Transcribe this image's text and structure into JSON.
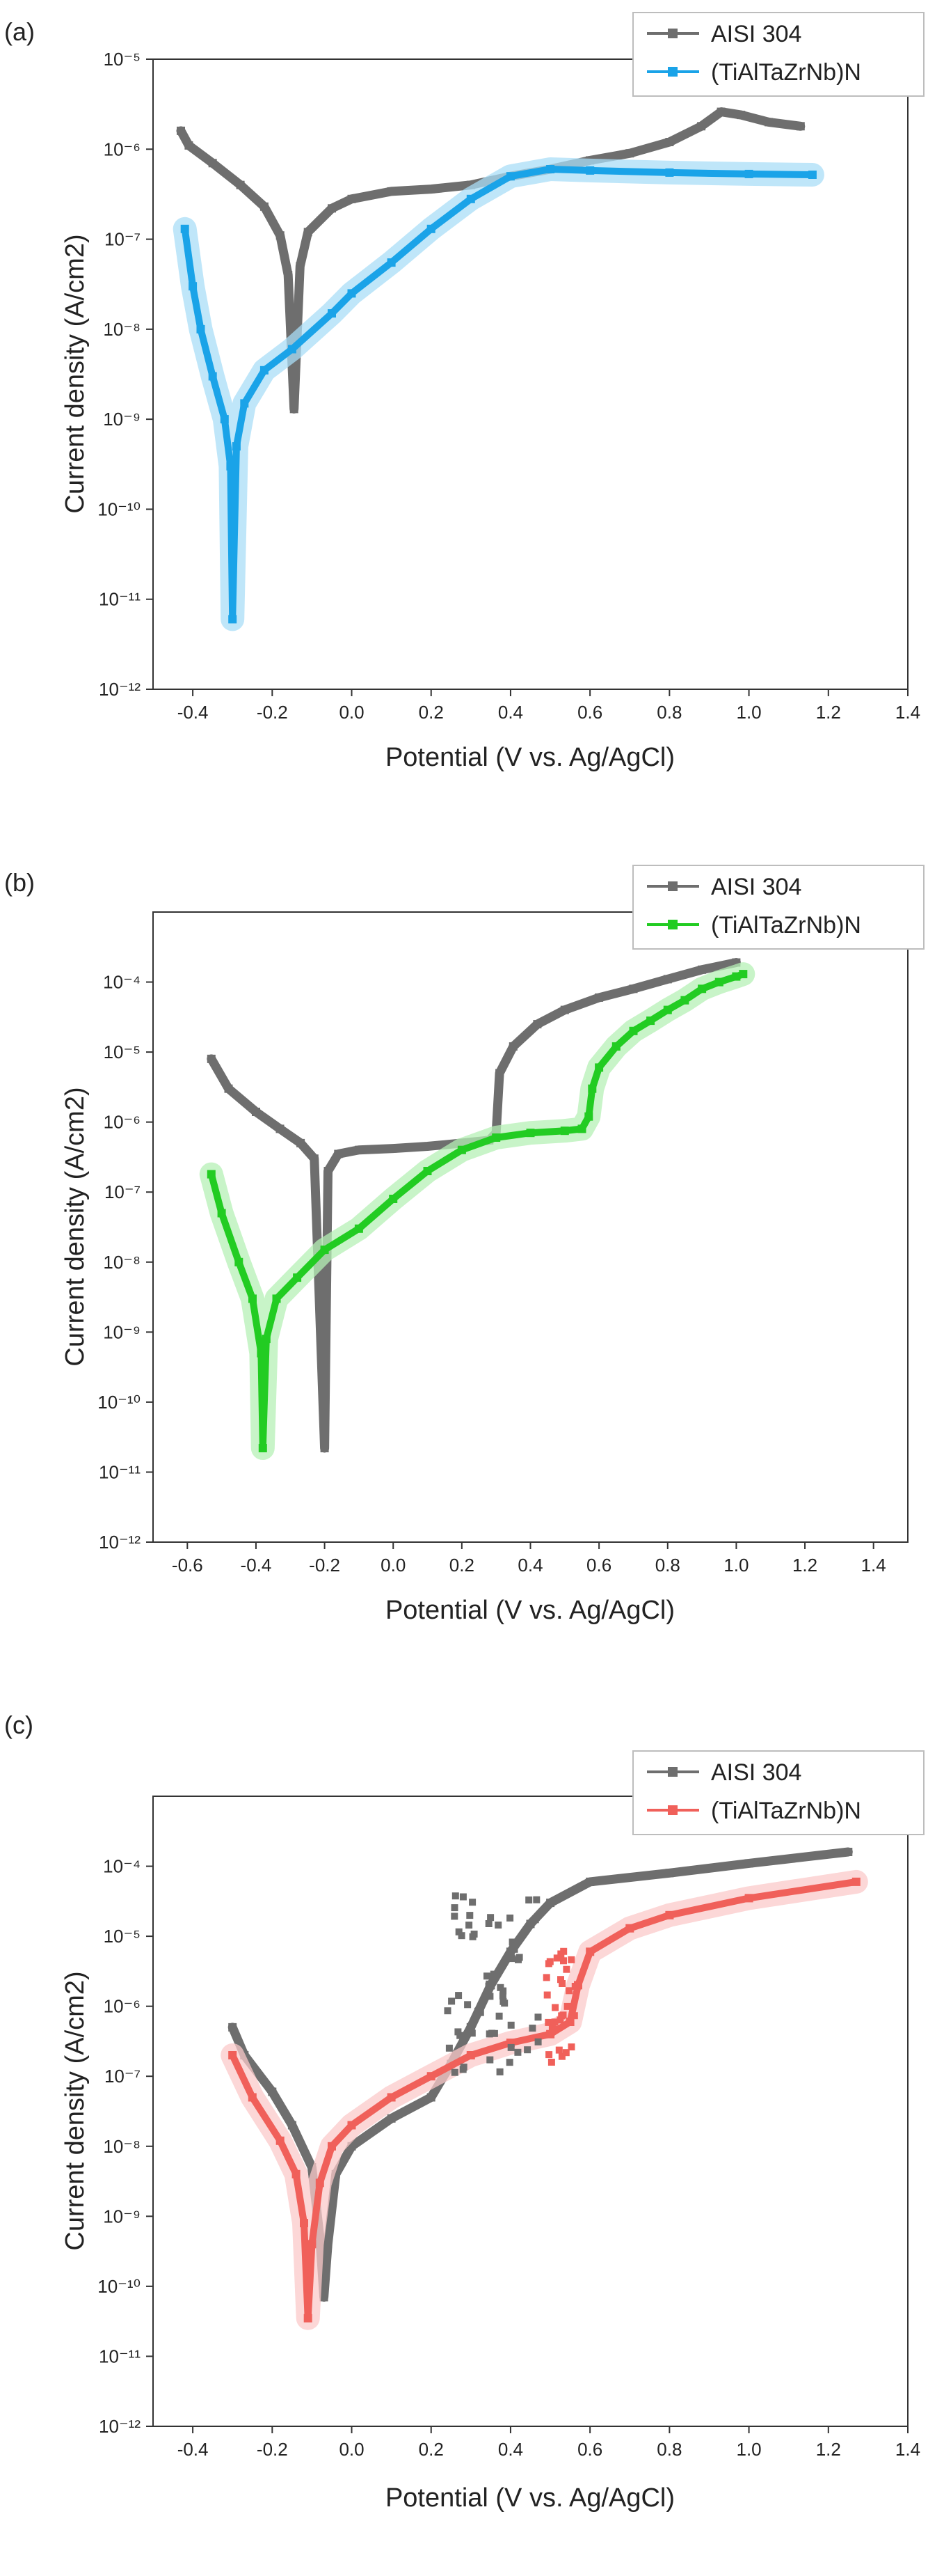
{
  "chart_data": [
    {
      "type": "line",
      "panel_label": "(a)",
      "xlabel": "Potential (V vs. Ag/AgCl)",
      "ylabel": "Current density (A/cm2)",
      "yscale": "log",
      "xlim": [
        -0.5,
        1.4
      ],
      "ylim": [
        1e-12,
        1e-05
      ],
      "xticks": [
        "-0.4",
        "-0.2",
        "0.0",
        "0.2",
        "0.4",
        "0.6",
        "0.8",
        "1.0",
        "1.2",
        "1.4"
      ],
      "yticks": [
        "10^-12",
        "10^-11",
        "10^-10",
        "10^-9",
        "10^-8",
        "10^-7",
        "10^-6",
        "10^-5"
      ],
      "legend": {
        "position": "top-right"
      },
      "series": [
        {
          "name": "AISI 304",
          "color": "#6e6e6e",
          "points": [
            [
              -0.43,
              1.6e-06
            ],
            [
              -0.41,
              1.1e-06
            ],
            [
              -0.35,
              7e-07
            ],
            [
              -0.28,
              4e-07
            ],
            [
              -0.22,
              2.3e-07
            ],
            [
              -0.18,
              1.1e-07
            ],
            [
              -0.16,
              4e-08
            ],
            [
              -0.145,
              1.3e-09
            ],
            [
              -0.13,
              5e-08
            ],
            [
              -0.11,
              1.2e-07
            ],
            [
              -0.05,
              2.2e-07
            ],
            [
              0.0,
              2.8e-07
            ],
            [
              0.1,
              3.4e-07
            ],
            [
              0.2,
              3.6e-07
            ],
            [
              0.3,
              4e-07
            ],
            [
              0.4,
              5e-07
            ],
            [
              0.5,
              6e-07
            ],
            [
              0.6,
              7.5e-07
            ],
            [
              0.7,
              9e-07
            ],
            [
              0.8,
              1.2e-06
            ],
            [
              0.88,
              1.8e-06
            ],
            [
              0.93,
              2.6e-06
            ],
            [
              0.98,
              2.4e-06
            ],
            [
              1.05,
              2e-06
            ],
            [
              1.13,
              1.8e-06
            ]
          ]
        },
        {
          "name": "(TiAlTaZrNb)N",
          "color": "#1aa3e8",
          "band_color": "#a9def7",
          "points": [
            [
              -0.42,
              1.3e-07
            ],
            [
              -0.4,
              3e-08
            ],
            [
              -0.38,
              1e-08
            ],
            [
              -0.35,
              3e-09
            ],
            [
              -0.32,
              1e-09
            ],
            [
              -0.305,
              3e-10
            ],
            [
              -0.3,
              6e-12
            ],
            [
              -0.29,
              5e-10
            ],
            [
              -0.27,
              1.5e-09
            ],
            [
              -0.22,
              3.5e-09
            ],
            [
              -0.15,
              6e-09
            ],
            [
              -0.05,
              1.5e-08
            ],
            [
              0.0,
              2.5e-08
            ],
            [
              0.1,
              5.5e-08
            ],
            [
              0.2,
              1.3e-07
            ],
            [
              0.3,
              2.8e-07
            ],
            [
              0.4,
              5e-07
            ],
            [
              0.5,
              6e-07
            ],
            [
              0.6,
              5.8e-07
            ],
            [
              0.8,
              5.5e-07
            ],
            [
              1.0,
              5.3e-07
            ],
            [
              1.16,
              5.2e-07
            ]
          ]
        }
      ]
    },
    {
      "type": "line",
      "panel_label": "(b)",
      "xlabel": "Potential (V vs. Ag/AgCl)",
      "ylabel": "Current density (A/cm2)",
      "yscale": "log",
      "xlim": [
        -0.7,
        1.5
      ],
      "ylim": [
        1e-12,
        0.001
      ],
      "xticks": [
        "-0.6",
        "-0.4",
        "-0.2",
        "0.0",
        "0.2",
        "0.4",
        "0.6",
        "0.8",
        "1.0",
        "1.2",
        "1.4"
      ],
      "yticks": [
        "10^-12",
        "10^-11",
        "10^-10",
        "10^-9",
        "10^-8",
        "10^-7",
        "10^-6",
        "10^-5",
        "10^-4"
      ],
      "legend": {
        "position": "top-right"
      },
      "series": [
        {
          "name": "AISI 304",
          "color": "#6e6e6e",
          "points": [
            [
              -0.53,
              8e-06
            ],
            [
              -0.48,
              3e-06
            ],
            [
              -0.4,
              1.4e-06
            ],
            [
              -0.33,
              8e-07
            ],
            [
              -0.27,
              5e-07
            ],
            [
              -0.23,
              3e-07
            ],
            [
              -0.2,
              2.2e-11
            ],
            [
              -0.19,
              2e-07
            ],
            [
              -0.16,
              3.5e-07
            ],
            [
              -0.1,
              4e-07
            ],
            [
              0.0,
              4.2e-07
            ],
            [
              0.1,
              4.5e-07
            ],
            [
              0.2,
              5e-07
            ],
            [
              0.28,
              5.5e-07
            ],
            [
              0.3,
              7e-07
            ],
            [
              0.31,
              5e-06
            ],
            [
              0.35,
              1.2e-05
            ],
            [
              0.42,
              2.5e-05
            ],
            [
              0.5,
              4e-05
            ],
            [
              0.6,
              6e-05
            ],
            [
              0.7,
              8e-05
            ],
            [
              0.8,
              0.00011
            ],
            [
              0.9,
              0.00015
            ],
            [
              1.0,
              0.00019
            ]
          ]
        },
        {
          "name": "(TiAlTaZrNb)N",
          "color": "#22cc22",
          "band_color": "#b6f0b6",
          "points": [
            [
              -0.53,
              1.8e-07
            ],
            [
              -0.5,
              5e-08
            ],
            [
              -0.45,
              1e-08
            ],
            [
              -0.41,
              3e-09
            ],
            [
              -0.385,
              5e-10
            ],
            [
              -0.38,
              2.2e-11
            ],
            [
              -0.37,
              8e-10
            ],
            [
              -0.34,
              3e-09
            ],
            [
              -0.28,
              6e-09
            ],
            [
              -0.2,
              1.5e-08
            ],
            [
              -0.1,
              3e-08
            ],
            [
              0.0,
              8e-08
            ],
            [
              0.1,
              2e-07
            ],
            [
              0.2,
              4e-07
            ],
            [
              0.3,
              6e-07
            ],
            [
              0.4,
              7e-07
            ],
            [
              0.5,
              7.5e-07
            ],
            [
              0.55,
              8e-07
            ],
            [
              0.57,
              1.2e-06
            ],
            [
              0.58,
              3e-06
            ],
            [
              0.6,
              6e-06
            ],
            [
              0.65,
              1.2e-05
            ],
            [
              0.7,
              2e-05
            ],
            [
              0.75,
              2.8e-05
            ],
            [
              0.8,
              4e-05
            ],
            [
              0.85,
              5.5e-05
            ],
            [
              0.9,
              8e-05
            ],
            [
              0.95,
              0.0001
            ],
            [
              1.0,
              0.00012
            ],
            [
              1.02,
              0.00013
            ]
          ]
        }
      ]
    },
    {
      "type": "line",
      "panel_label": "(c)",
      "xlabel": "Potential (V vs. Ag/AgCl)",
      "ylabel": "Current density (A/cm2)",
      "yscale": "log",
      "xlim": [
        -0.5,
        1.4
      ],
      "ylim": [
        1e-12,
        0.001
      ],
      "xticks": [
        "-0.4",
        "-0.2",
        "0.0",
        "0.2",
        "0.4",
        "0.6",
        "0.8",
        "1.0",
        "1.2",
        "1.4"
      ],
      "yticks": [
        "10^-12",
        "10^-11",
        "10^-10",
        "10^-9",
        "10^-8",
        "10^-7",
        "10^-6",
        "10^-5",
        "10^-4"
      ],
      "legend": {
        "position": "top-right"
      },
      "series": [
        {
          "name": "AISI 304",
          "color": "#6e6e6e",
          "points": [
            [
              -0.3,
              5e-07
            ],
            [
              -0.27,
              2e-07
            ],
            [
              -0.2,
              6e-08
            ],
            [
              -0.15,
              2e-08
            ],
            [
              -0.1,
              5e-09
            ],
            [
              -0.08,
              5e-10
            ],
            [
              -0.07,
              7e-11
            ],
            [
              -0.06,
              4e-10
            ],
            [
              -0.04,
              4e-09
            ],
            [
              0.0,
              1e-08
            ],
            [
              0.1,
              2.5e-08
            ],
            [
              0.2,
              5e-08
            ],
            [
              0.25,
              1.5e-07
            ],
            [
              0.3,
              5e-07
            ],
            [
              0.35,
              2e-06
            ],
            [
              0.4,
              6e-06
            ],
            [
              0.45,
              1.5e-05
            ],
            [
              0.5,
              3e-05
            ],
            [
              0.6,
              6e-05
            ],
            [
              0.8,
              8e-05
            ],
            [
              1.0,
              0.00011
            ],
            [
              1.25,
              0.00016
            ]
          ]
        },
        {
          "name": "(TiAlTaZrNb)N",
          "color": "#f0605a",
          "band_color": "#fbcaca",
          "points": [
            [
              -0.3,
              2e-07
            ],
            [
              -0.25,
              5e-08
            ],
            [
              -0.18,
              1.2e-08
            ],
            [
              -0.14,
              4e-09
            ],
            [
              -0.12,
              8e-10
            ],
            [
              -0.11,
              3.5e-11
            ],
            [
              -0.1,
              4e-10
            ],
            [
              -0.08,
              3e-09
            ],
            [
              -0.05,
              1e-08
            ],
            [
              0.0,
              2e-08
            ],
            [
              0.1,
              5e-08
            ],
            [
              0.2,
              1e-07
            ],
            [
              0.3,
              2e-07
            ],
            [
              0.4,
              3e-07
            ],
            [
              0.5,
              4e-07
            ],
            [
              0.55,
              6e-07
            ],
            [
              0.57,
              2e-06
            ],
            [
              0.6,
              6e-06
            ],
            [
              0.7,
              1.3e-05
            ],
            [
              0.8,
              2e-05
            ],
            [
              1.0,
              3.5e-05
            ],
            [
              1.27,
              6e-05
            ]
          ]
        }
      ]
    }
  ]
}
